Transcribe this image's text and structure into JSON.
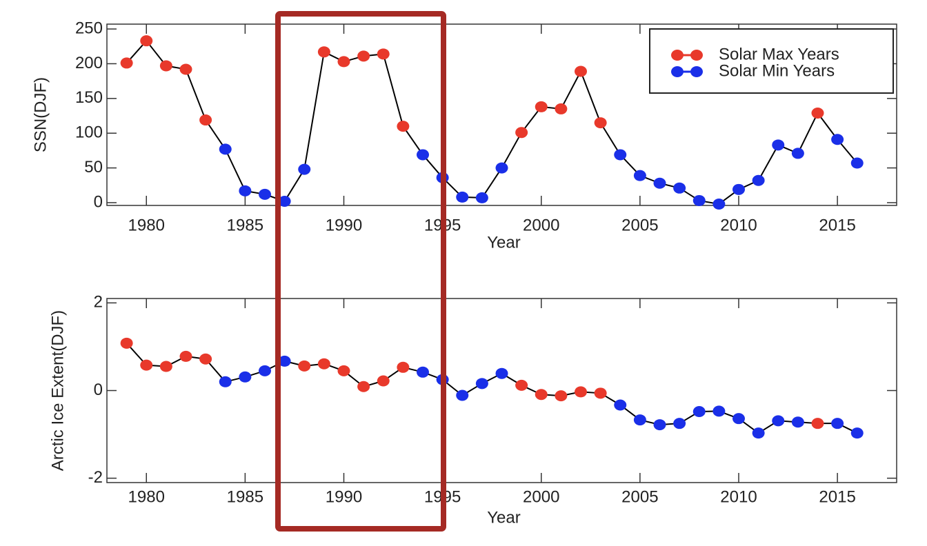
{
  "chart_data": [
    {
      "type": "line",
      "xlabel": "Year",
      "ylabel": "SSN(DJF)",
      "legend": "upper right",
      "line_color": "#000000",
      "x": [
        1979,
        1980,
        1981,
        1982,
        1983,
        1984,
        1985,
        1986,
        1987,
        1988,
        1989,
        1990,
        1991,
        1992,
        1993,
        1994,
        1995,
        1996,
        1997,
        1998,
        1999,
        2000,
        2001,
        2002,
        2003,
        2004,
        2005,
        2006,
        2007,
        2008,
        2009,
        2010,
        2011,
        2012,
        2013,
        2014,
        2015,
        2016
      ],
      "series": [
        {
          "name": "Solar Max Years",
          "color": "#e8392b",
          "values": [
            201,
            233,
            197,
            192,
            119,
            null,
            null,
            null,
            null,
            null,
            217,
            203,
            211,
            214,
            110,
            null,
            null,
            null,
            null,
            null,
            101,
            138,
            135,
            189,
            115,
            null,
            null,
            null,
            null,
            null,
            null,
            null,
            null,
            null,
            null,
            129,
            null,
            null
          ]
        },
        {
          "name": "Solar Min Years",
          "color": "#1a2fe8",
          "values": [
            null,
            null,
            null,
            null,
            null,
            77,
            17,
            12,
            2,
            48,
            null,
            null,
            null,
            null,
            null,
            69,
            36,
            8,
            7,
            50,
            null,
            null,
            null,
            null,
            null,
            69,
            39,
            28,
            21,
            3,
            -2,
            19,
            32,
            83,
            71,
            null,
            91,
            57
          ]
        }
      ],
      "xlim": [
        1978,
        2018
      ],
      "ylim": [
        -4,
        257
      ],
      "xticks": [
        1980,
        1985,
        1990,
        1995,
        2000,
        2005,
        2010,
        2015
      ],
      "yticks": [
        0,
        50,
        100,
        150,
        200,
        250
      ]
    },
    {
      "type": "line",
      "xlabel": "Year",
      "ylabel": "Arctic Ice Extent(DJF)",
      "line_color": "#000000",
      "x": [
        1979,
        1980,
        1981,
        1982,
        1983,
        1984,
        1985,
        1986,
        1987,
        1988,
        1989,
        1990,
        1991,
        1992,
        1993,
        1994,
        1995,
        1996,
        1997,
        1998,
        1999,
        2000,
        2001,
        2002,
        2003,
        2004,
        2005,
        2006,
        2007,
        2008,
        2009,
        2010,
        2011,
        2012,
        2013,
        2014,
        2015,
        2016
      ],
      "series": [
        {
          "color": "#e8392b",
          "values": [
            1.08,
            0.58,
            0.55,
            0.78,
            0.72,
            null,
            null,
            null,
            null,
            0.56,
            0.61,
            0.45,
            0.09,
            0.22,
            0.53,
            null,
            null,
            null,
            null,
            null,
            0.12,
            -0.09,
            -0.12,
            -0.03,
            -0.06,
            null,
            null,
            null,
            null,
            null,
            null,
            null,
            null,
            null,
            null,
            -0.75,
            null,
            null
          ]
        },
        {
          "color": "#1a2fe8",
          "values": [
            null,
            null,
            null,
            null,
            null,
            0.2,
            0.31,
            0.45,
            0.67,
            null,
            null,
            null,
            null,
            null,
            null,
            0.42,
            0.25,
            -0.11,
            0.16,
            0.39,
            null,
            null,
            null,
            null,
            null,
            -0.33,
            -0.67,
            -0.78,
            -0.75,
            -0.48,
            -0.47,
            -0.64,
            -0.97,
            -0.69,
            -0.72,
            null,
            -0.75,
            -0.97
          ]
        }
      ],
      "xlim": [
        1978,
        2018
      ],
      "ylim": [
        -2.1,
        2.1
      ],
      "xticks": [
        1980,
        1985,
        1990,
        1995,
        2000,
        2005,
        2010,
        2015
      ],
      "yticks": [
        -2,
        0,
        2
      ]
    }
  ]
}
